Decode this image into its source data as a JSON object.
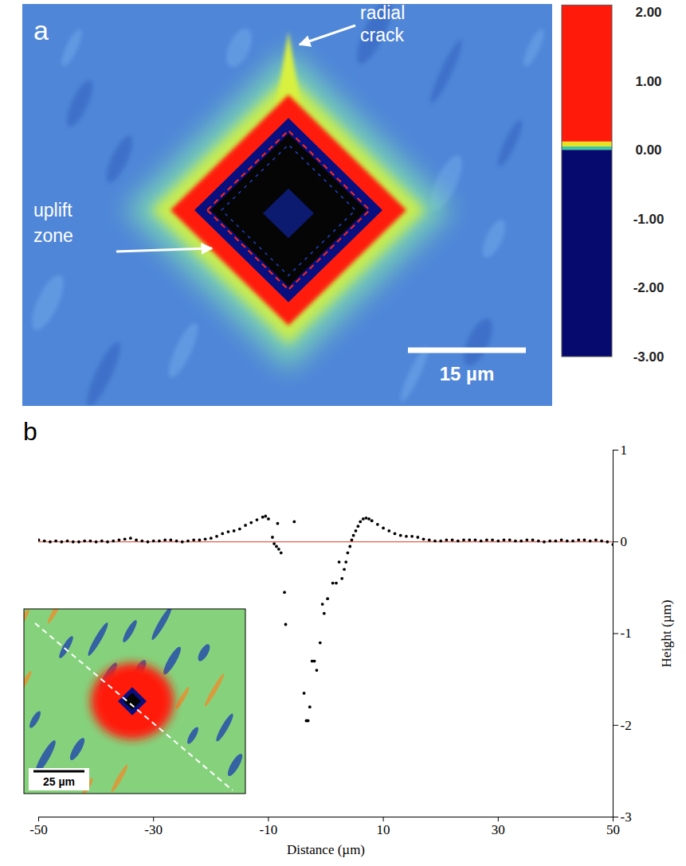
{
  "chart_data": [
    {
      "type": "heatmap",
      "label": "a",
      "annotations": [
        "radial crack",
        "uplift zone"
      ],
      "scale_bar": "15 µm",
      "colorbar": {
        "lim": [
          -3,
          2.1
        ],
        "ticks": [
          {
            "value": 2,
            "label": "2.00"
          },
          {
            "value": 1,
            "label": "1.00"
          },
          {
            "value": 0,
            "label": "0.00"
          },
          {
            "value": -1,
            "label": "-1.00"
          },
          {
            "value": -2,
            "label": "-2.00"
          },
          {
            "value": -3,
            "label": "-3.00"
          }
        ],
        "segments": [
          {
            "from": -3,
            "to": 0,
            "color": "#06096e"
          },
          {
            "from": 0,
            "to": 0.05,
            "color": "#3cc8a0"
          },
          {
            "from": 0.05,
            "to": 0.12,
            "color": "#e8e020"
          },
          {
            "from": 0.12,
            "to": 2.1,
            "color": "#ff1a0a"
          }
        ]
      }
    },
    {
      "type": "scatter",
      "label": "b",
      "marker": "circle",
      "color": "#000000",
      "x": [
        -50,
        -49,
        -48,
        -47,
        -46,
        -45,
        -44,
        -43,
        -42,
        -41,
        -40,
        -39,
        -38,
        -37,
        -36,
        -35,
        -34,
        -33,
        -32,
        -31,
        -30,
        -29,
        -28,
        -27,
        -26,
        -25,
        -24,
        -23,
        -22,
        -21,
        -20,
        -19,
        -18,
        -17,
        -16,
        -15,
        -14,
        -13,
        -12,
        -11,
        -10.5,
        -10,
        -9.3,
        -9.0,
        -8.6,
        -8.4,
        -8.2,
        -7.8,
        -7.2,
        -7.0,
        -5.5,
        -3.8,
        -3.4,
        -3.1,
        -2.8,
        -2.4,
        -2.0,
        -1.6,
        -1.0,
        -0.6,
        -0.3,
        0.3,
        1.2,
        1.8,
        2.3,
        2.8,
        3.2,
        3.5,
        3.8,
        4.2,
        4.5,
        4.8,
        5.2,
        5.6,
        6.0,
        6.5,
        7.0,
        7.5,
        8,
        9,
        10,
        11,
        12,
        13,
        14,
        15,
        16,
        17,
        18,
        19,
        20,
        21,
        22,
        23,
        24,
        25,
        26,
        27,
        28,
        29,
        30,
        31,
        32,
        33,
        34,
        35,
        36,
        37,
        38,
        39,
        40,
        41,
        42,
        43,
        44,
        45,
        46,
        47,
        48,
        49,
        50
      ],
      "values": [
        0.02,
        0.01,
        0.0,
        0.01,
        0.0,
        0.01,
        0.0,
        0.0,
        0.01,
        0.01,
        0.0,
        0.01,
        0.0,
        0.01,
        0.02,
        0.03,
        0.04,
        0.02,
        0.01,
        0.0,
        0.01,
        0.01,
        0.02,
        0.02,
        0.01,
        0.0,
        0.01,
        0.02,
        0.02,
        0.03,
        0.04,
        0.06,
        0.09,
        0.11,
        0.12,
        0.14,
        0.18,
        0.21,
        0.24,
        0.27,
        0.28,
        0.25,
        0.05,
        -0.02,
        -0.05,
        0.2,
        -0.08,
        -0.12,
        -0.55,
        -0.9,
        0.22,
        -1.65,
        -1.95,
        -1.95,
        -1.8,
        -1.3,
        -1.3,
        -1.4,
        -1.1,
        -0.68,
        -0.78,
        -0.62,
        -0.45,
        -0.45,
        -0.22,
        -0.4,
        -0.3,
        -0.22,
        -0.12,
        -0.05,
        0.02,
        0.07,
        0.12,
        0.17,
        0.22,
        0.25,
        0.26,
        0.25,
        0.23,
        0.19,
        0.15,
        0.12,
        0.09,
        0.07,
        0.06,
        0.06,
        0.05,
        0.03,
        0.02,
        0.01,
        0.01,
        0.02,
        0.02,
        0.01,
        0.02,
        0.02,
        0.02,
        0.01,
        0.02,
        0.02,
        0.01,
        0.02,
        0.02,
        0.01,
        0.01,
        0.02,
        0.02,
        0.01,
        0.0,
        0.01,
        0.01,
        0.02,
        0.01,
        0.01,
        0.02,
        0.02,
        0.01,
        0.02,
        0.01,
        0.0,
        -0.03
      ],
      "xlim": [
        -50,
        50
      ],
      "ylim": [
        -3,
        1
      ],
      "xticks": [
        -50,
        -30,
        -10,
        10,
        30,
        50
      ],
      "yticks": [
        -3,
        -2,
        -1,
        0,
        1
      ],
      "x_label": "Distance (µm)",
      "y_label": "Height (µm)",
      "reference_line": {
        "value": 0,
        "color": "#e03020"
      },
      "inset": {
        "scale_bar": "25 µm"
      }
    }
  ]
}
